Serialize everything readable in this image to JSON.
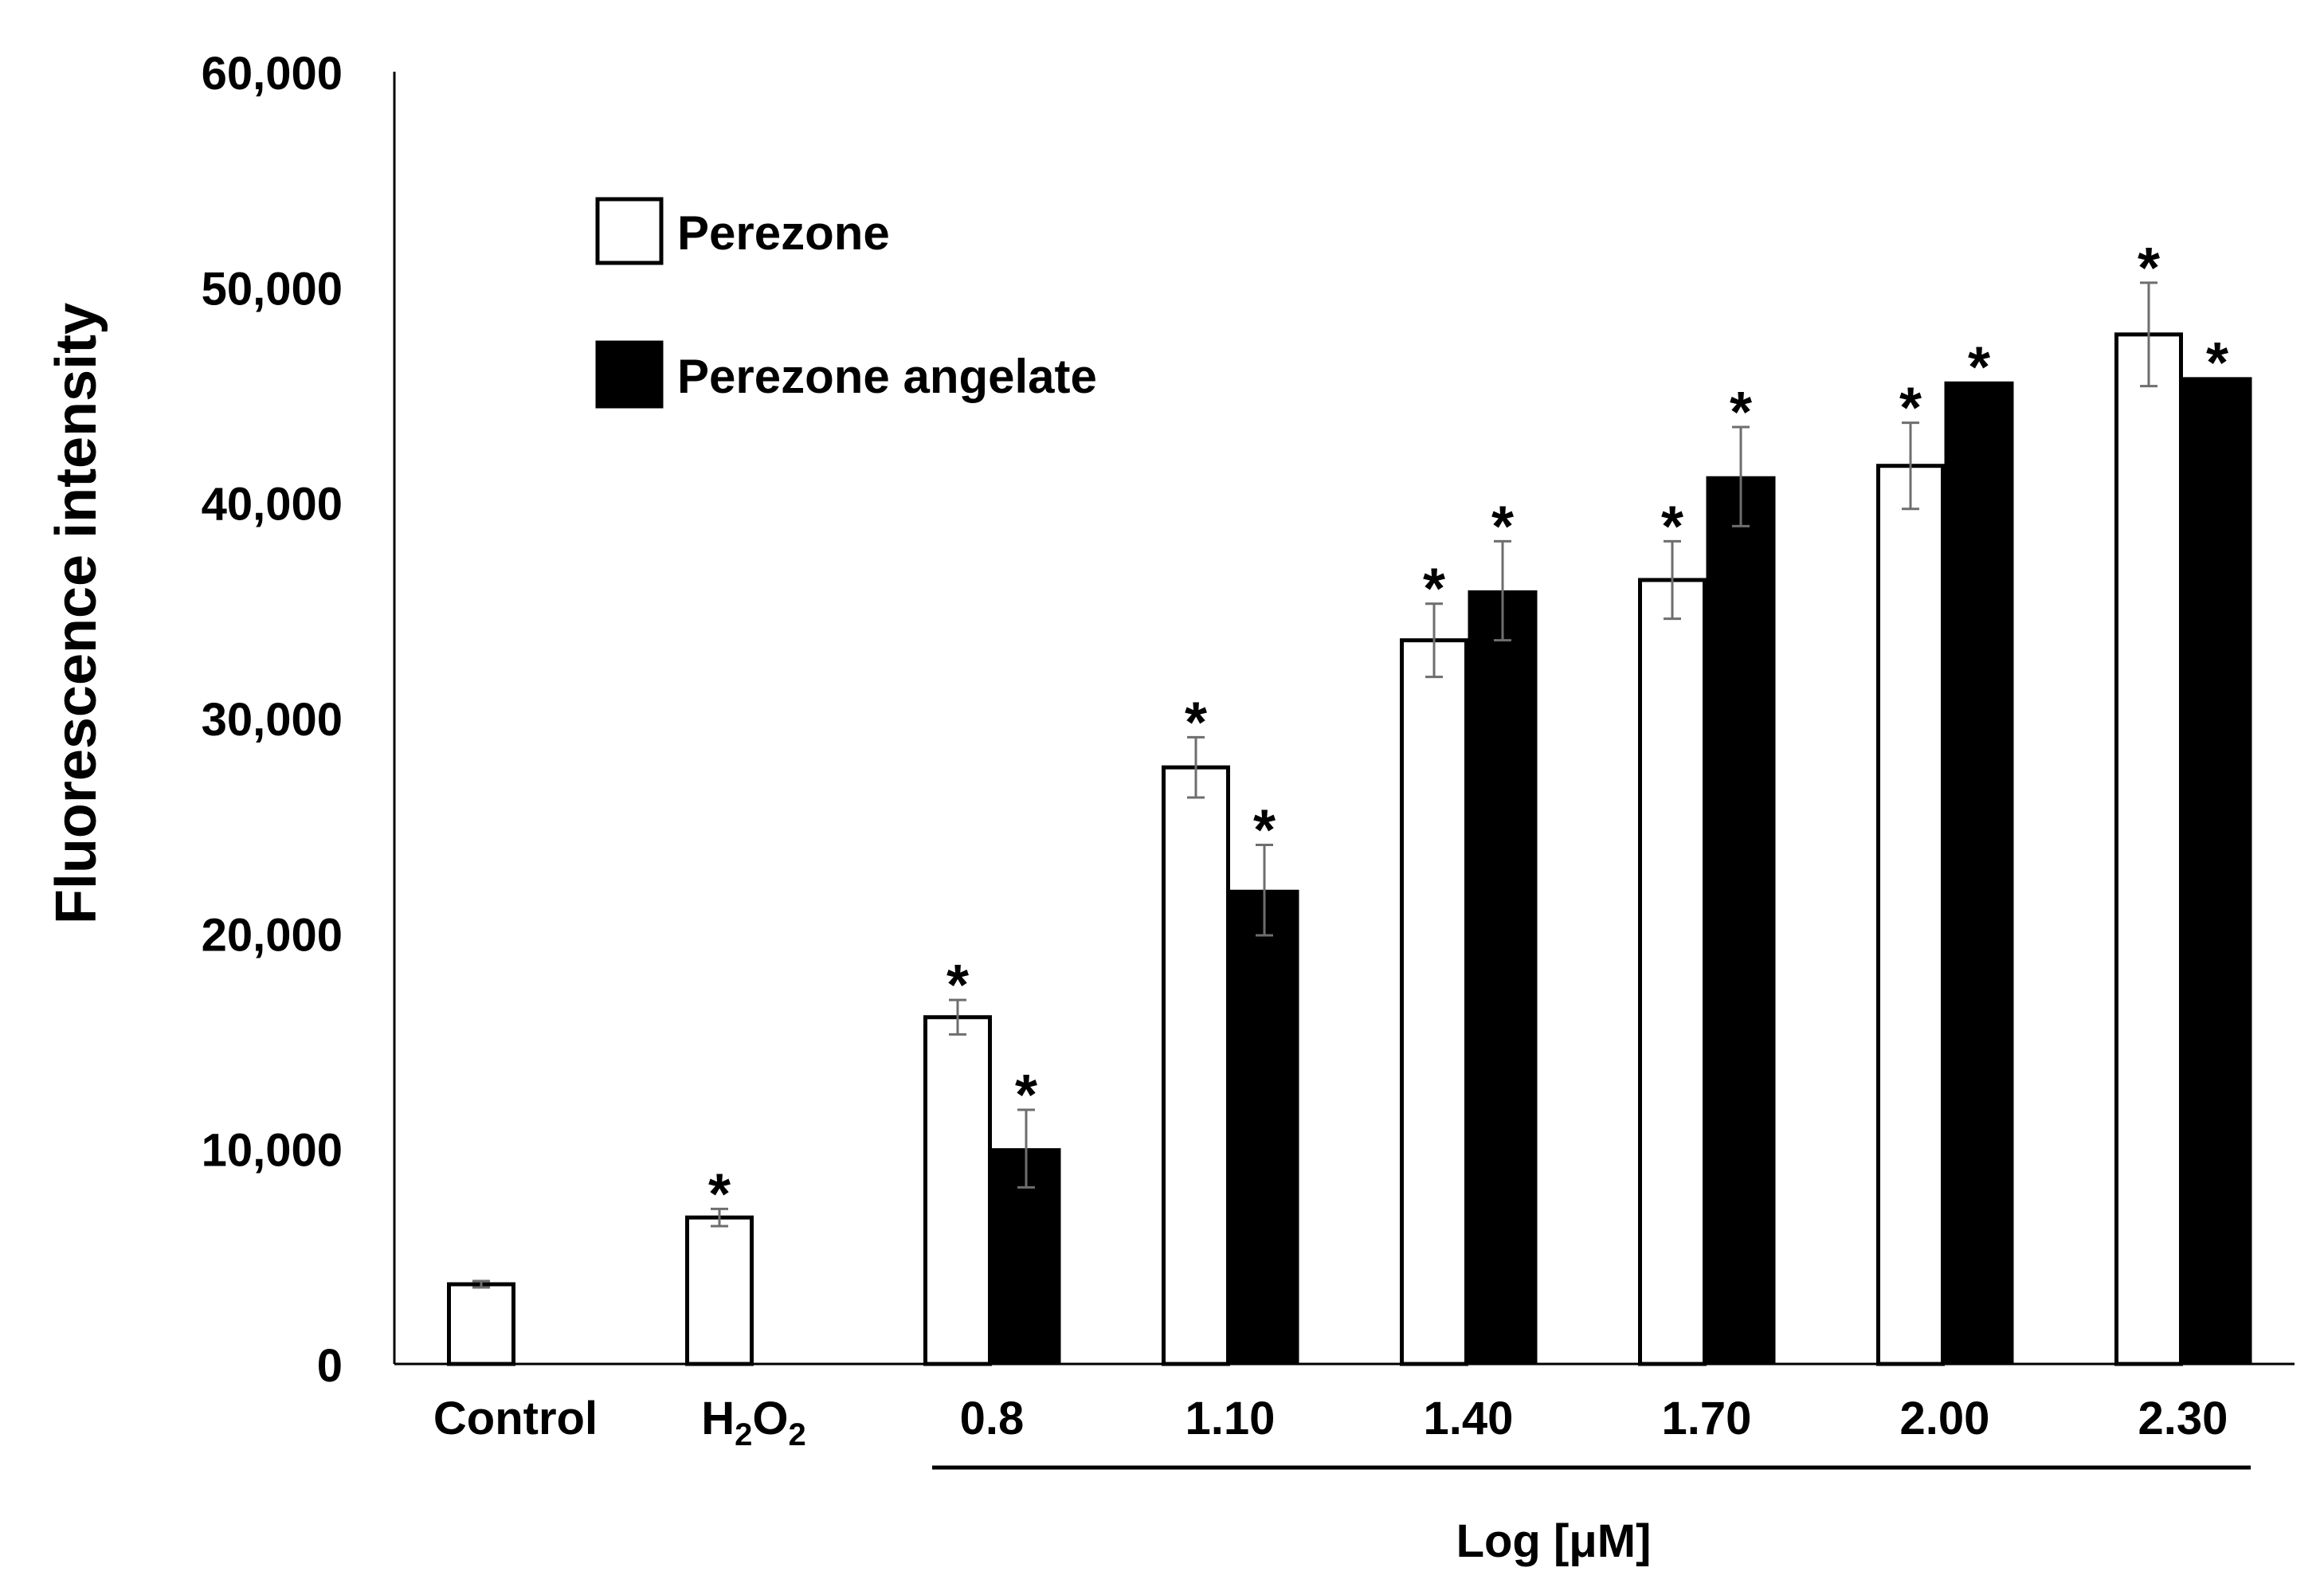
{
  "chart_data": {
    "type": "bar",
    "ylabel": "Fluorescence intensity",
    "xlabel": "Log [μM]",
    "ylim": [
      0,
      60000
    ],
    "yticks": [
      0,
      10000,
      20000,
      30000,
      40000,
      50000,
      60000
    ],
    "ytick_labels": [
      "0",
      "10,000",
      "20,000",
      "30,000",
      "40,000",
      "50,000",
      "60,000"
    ],
    "categories": [
      "Control",
      "H2O2",
      "0.8",
      "1.10",
      "1.40",
      "1.70",
      "2.00",
      "2.30"
    ],
    "h2o2_label": {
      "main": "H",
      "sub1": "2",
      "mid": "O",
      "sub2": "2"
    },
    "legend": {
      "position": "top-left",
      "items": [
        "Perezone",
        "Perezone angelate"
      ]
    },
    "significance_mark": "*",
    "series": [
      {
        "name": "Perezone",
        "fill": "#ffffff",
        "values": [
          3700,
          6800,
          16100,
          27700,
          33600,
          36400,
          41700,
          47800
        ],
        "errors": [
          150,
          400,
          800,
          1400,
          1700,
          1800,
          2000,
          2400
        ],
        "significant": [
          false,
          true,
          true,
          true,
          true,
          true,
          true,
          true
        ]
      },
      {
        "name": "Perezone angelate",
        "fill": "#000000",
        "values": [
          null,
          null,
          10000,
          22000,
          35900,
          41200,
          45600,
          45800
        ],
        "errors": [
          null,
          null,
          1800,
          2100,
          2300,
          2300,
          0,
          0
        ],
        "significant": [
          false,
          false,
          true,
          true,
          true,
          true,
          true,
          true
        ]
      }
    ]
  }
}
